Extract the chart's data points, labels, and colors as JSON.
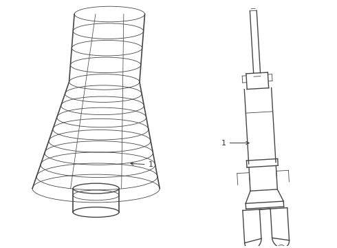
{
  "bg_color": "#ffffff",
  "line_color": "#444444",
  "label_color": "#333333",
  "lw": 1.0,
  "thin_lw": 0.6,
  "fig_w": 4.9,
  "fig_h": 3.6
}
